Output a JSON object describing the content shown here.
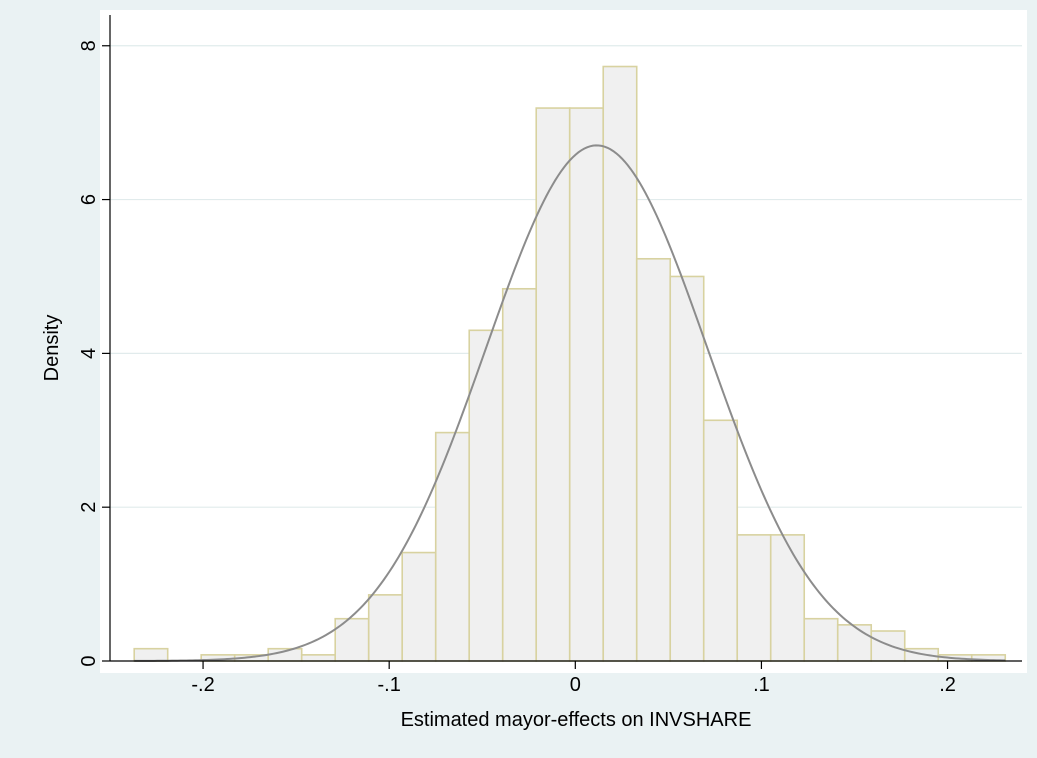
{
  "chart_data": {
    "type": "bar",
    "title": "",
    "xlabel": "Estimated mayor-effects on INVSHARE",
    "ylabel": "Density",
    "xlim": [
      -0.25,
      0.24
    ],
    "ylim": [
      0,
      8.4
    ],
    "xticks": [
      {
        "value": -0.2,
        "label": "-.2"
      },
      {
        "value": -0.1,
        "label": "-.1"
      },
      {
        "value": 0,
        "label": "0"
      },
      {
        "value": 0.1,
        "label": ".1"
      },
      {
        "value": 0.2,
        "label": ".2"
      }
    ],
    "yticks": [
      {
        "value": 0,
        "label": "0"
      },
      {
        "value": 2,
        "label": "2"
      },
      {
        "value": 4,
        "label": "4"
      },
      {
        "value": 6,
        "label": "6"
      },
      {
        "value": 8,
        "label": "8"
      }
    ],
    "grid": true,
    "bin_start": -0.237,
    "bin_width": 0.018,
    "histogram": [
      0.16,
      0.0,
      0.08,
      0.08,
      0.16,
      0.08,
      0.55,
      0.86,
      1.41,
      2.97,
      4.3,
      4.84,
      7.19,
      7.19,
      7.73,
      5.23,
      5.0,
      3.13,
      1.64,
      1.64,
      0.55,
      0.47,
      0.39,
      0.16,
      0.08,
      0.08
    ],
    "normal_curve": {
      "mean": 0.0115,
      "sd": 0.0595
    },
    "colors": {
      "background": "#eaf2f3",
      "plot_background": "#ffffff",
      "bar_fill": "#f0f0f0",
      "bar_edge": "#d8d2a0",
      "curve": "#8c8c8c",
      "grid": "#e1ebec"
    }
  }
}
